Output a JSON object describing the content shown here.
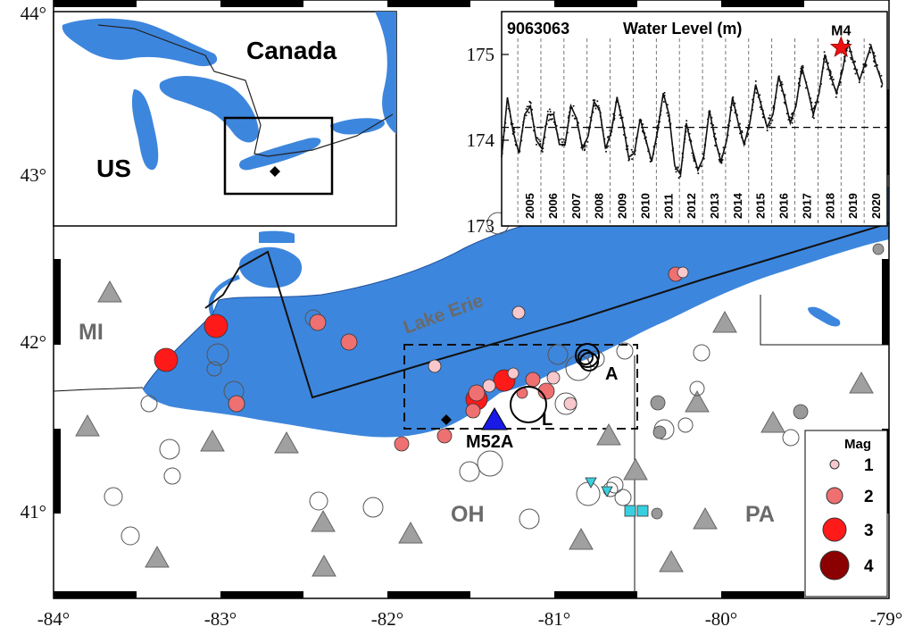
{
  "map": {
    "lon_ticks": [
      "-84°",
      "-83°",
      "-82°",
      "-81°",
      "-80°",
      "-79°"
    ],
    "lat_ticks": [
      "44°",
      "43°",
      "42°",
      "41°"
    ],
    "lake_label": "Lake Erie",
    "regions": {
      "mi": "MI",
      "oh": "OH",
      "pa": "PA"
    },
    "station_label": "M52A",
    "cluster_labels": {
      "a": "A",
      "l": "L"
    },
    "colors": {
      "water": "#3d86dd",
      "land": "#ffffff",
      "station": "#1a1ae6",
      "triangle": "#a0a0a0",
      "cyan": "#38d0e0"
    }
  },
  "inset_map": {
    "country_canada": "Canada",
    "country_us": "US"
  },
  "inset_chart": {
    "title": "Water Level (m)",
    "station_id": "9063063",
    "marker_label": "M4",
    "chart_data": {
      "type": "line",
      "title": "Water Level (m)",
      "xlabel": "",
      "ylabel": "",
      "x_ticks": [
        "2005",
        "2006",
        "2007",
        "2008",
        "2009",
        "2010",
        "2011",
        "2012",
        "2013",
        "2014",
        "2015",
        "2016",
        "2017",
        "2018",
        "2019",
        "2020"
      ],
      "y_ticks": [
        "173",
        "174",
        "175"
      ],
      "xlim": [
        2004.3,
        2021.0
      ],
      "ylim": [
        173,
        175.5
      ],
      "reference_level": 174.15,
      "series": [
        {
          "x": [
            2004.3,
            2004.55,
            2004.8,
            2005.05,
            2005.3,
            2005.55,
            2005.8,
            2006.05,
            2006.3,
            2006.55,
            2006.8,
            2007.05,
            2007.3,
            2007.55,
            2007.8,
            2008.05,
            2008.3,
            2008.55,
            2008.8,
            2009.05,
            2009.3,
            2009.55,
            2009.8,
            2010.05,
            2010.3,
            2010.55,
            2010.8,
            2011.05,
            2011.3,
            2011.55,
            2011.8,
            2012.05,
            2012.3,
            2012.55,
            2012.8,
            2013.05,
            2013.3,
            2013.55,
            2013.8,
            2014.05,
            2014.3,
            2014.55,
            2014.8,
            2015.05,
            2015.3,
            2015.55,
            2015.8,
            2016.05,
            2016.3,
            2016.55,
            2016.8,
            2017.05,
            2017.3,
            2017.55,
            2017.8,
            2018.05,
            2018.3,
            2018.55,
            2018.8,
            2019.05,
            2019.3,
            2019.55,
            2019.8,
            2020.05,
            2020.3,
            2020.55,
            2020.8
          ],
          "y": [
            173.8,
            174.5,
            174.1,
            173.85,
            174.3,
            174.4,
            174.0,
            173.9,
            174.3,
            174.3,
            173.95,
            173.95,
            174.4,
            174.25,
            173.9,
            174.05,
            174.45,
            174.35,
            173.9,
            174.1,
            174.5,
            174.2,
            173.8,
            173.85,
            174.25,
            174.0,
            173.75,
            174.1,
            174.55,
            174.3,
            173.7,
            173.6,
            174.2,
            173.9,
            173.65,
            173.8,
            174.35,
            174.0,
            173.75,
            174.0,
            174.5,
            174.2,
            173.95,
            174.2,
            174.65,
            174.4,
            174.15,
            174.3,
            174.75,
            174.5,
            174.2,
            174.4,
            174.85,
            174.6,
            174.3,
            174.55,
            175.0,
            174.75,
            174.55,
            174.8,
            175.15,
            174.9,
            174.7,
            174.9,
            175.1,
            174.85,
            174.65
          ]
        }
      ],
      "marker": {
        "x": 2019.0,
        "y": 175.08,
        "label": "M4"
      }
    }
  },
  "legend": {
    "title": "Mag",
    "items": [
      {
        "label": "1",
        "color": "#f8c8cc"
      },
      {
        "label": "2",
        "color": "#ee7070"
      },
      {
        "label": "3",
        "color": "#ff1a1a"
      },
      {
        "label": "4",
        "color": "#8b0000"
      }
    ]
  }
}
